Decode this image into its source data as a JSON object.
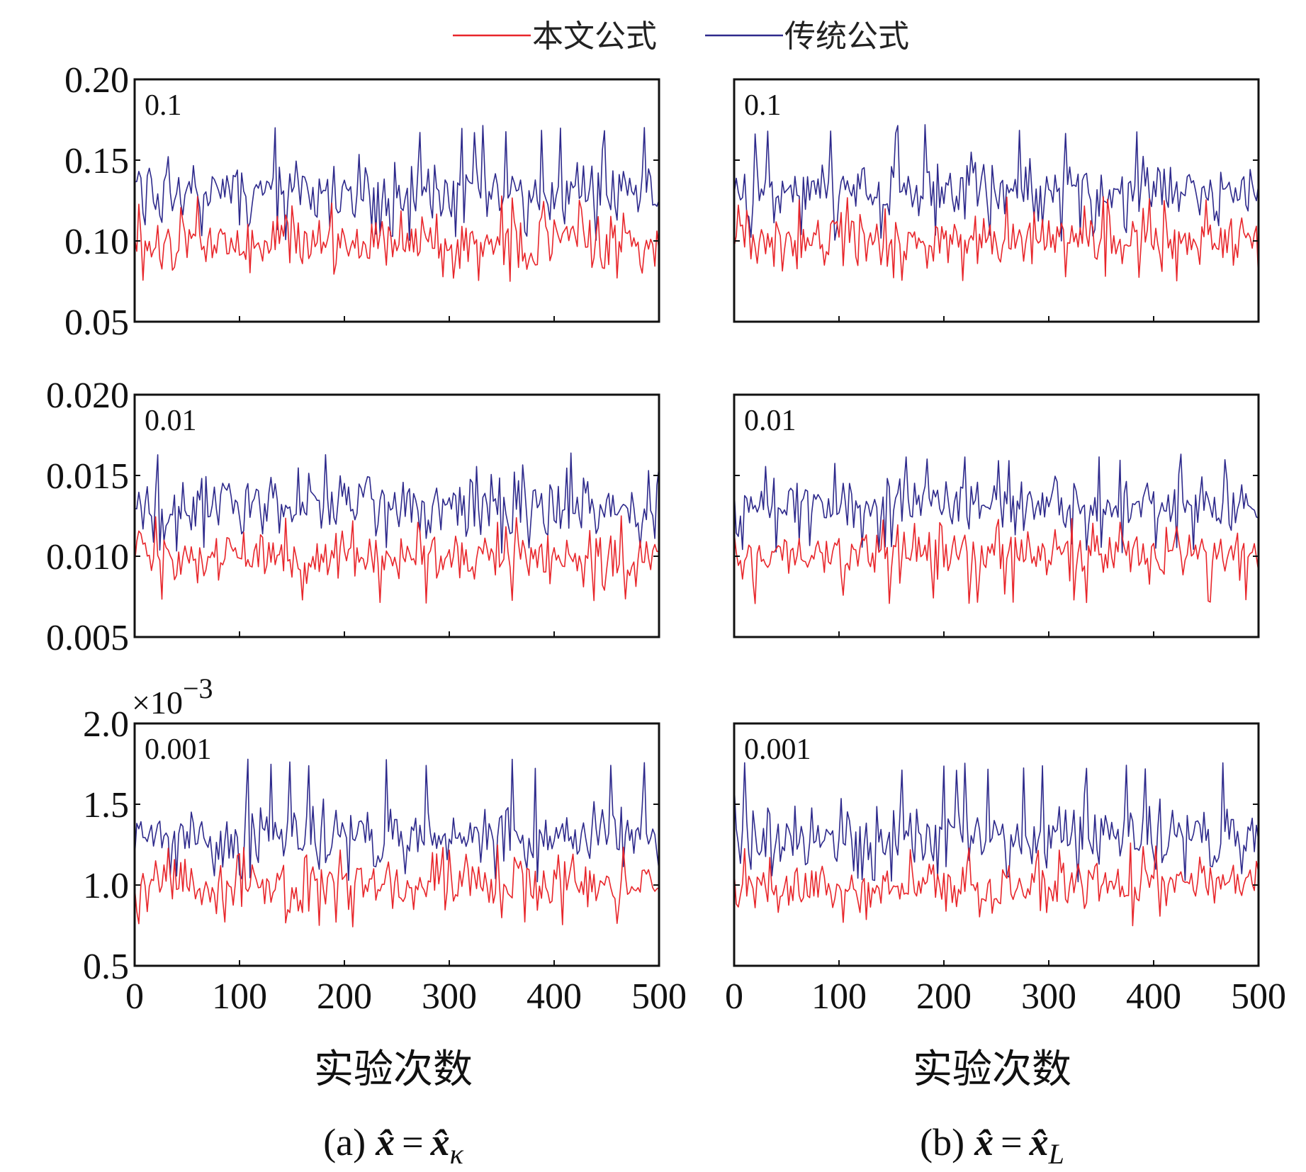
{
  "legend": {
    "items": [
      {
        "label": "本文公式",
        "color": "#e8262b"
      },
      {
        "label": "传统公式",
        "color": "#2e2a8c"
      }
    ]
  },
  "columns": [
    {
      "xlabel": "实验次数",
      "caption_prefix": "(a)",
      "caption_sub": "κ"
    },
    {
      "xlabel": "实验次数",
      "caption_prefix": "(b)",
      "caption_sub": "L"
    }
  ],
  "chart_data": [
    {
      "type": "line",
      "panel": "a-row1",
      "column": 0,
      "row": 0,
      "title": "",
      "annotation": "0.1",
      "show_yticks": true,
      "xlim": [
        0,
        500
      ],
      "ylim": [
        0.05,
        0.2
      ],
      "yticks": [
        "0.05",
        "0.10",
        "0.15",
        "0.20"
      ],
      "xticks": [],
      "exponent_label": "",
      "series": [
        {
          "name": "本文公式",
          "mean": 0.1,
          "spread": 0.0085,
          "min": 0.075,
          "max": 0.128,
          "seed": 11
        },
        {
          "name": "传统公式",
          "mean": 0.13,
          "spread": 0.01,
          "min": 0.1,
          "max": 0.172,
          "seed": 12
        }
      ]
    },
    {
      "type": "line",
      "panel": "a-row2",
      "column": 0,
      "row": 1,
      "title": "",
      "annotation": "0.01",
      "show_yticks": true,
      "xlim": [
        0,
        500
      ],
      "ylim": [
        0.005,
        0.02
      ],
      "yticks": [
        "0.005",
        "0.010",
        "0.015",
        "0.020"
      ],
      "xticks": [],
      "exponent_label": "",
      "series": [
        {
          "name": "本文公式",
          "mean": 0.01,
          "spread": 0.0008,
          "min": 0.0071,
          "max": 0.0125,
          "seed": 21
        },
        {
          "name": "传统公式",
          "mean": 0.0132,
          "spread": 0.001,
          "min": 0.0102,
          "max": 0.0168,
          "seed": 22
        }
      ]
    },
    {
      "type": "line",
      "panel": "a-row3",
      "column": 0,
      "row": 2,
      "title": "",
      "annotation": "0.001",
      "show_yticks": true,
      "xlim": [
        0,
        500
      ],
      "ylim": [
        0.5,
        2.0
      ],
      "yticks": [
        "0.5",
        "1.0",
        "1.5",
        "2.0"
      ],
      "xticks": [
        "0",
        "100",
        "200",
        "300",
        "400",
        "500"
      ],
      "exponent_label": "−3",
      "series": [
        {
          "name": "本文公式",
          "mean": 1.0,
          "spread": 0.085,
          "min": 0.74,
          "max": 1.26,
          "seed": 31
        },
        {
          "name": "传统公式",
          "mean": 1.3,
          "spread": 0.1,
          "min": 1.02,
          "max": 1.78,
          "seed": 32
        }
      ]
    },
    {
      "type": "line",
      "panel": "b-row1",
      "column": 1,
      "row": 0,
      "title": "",
      "annotation": "0.1",
      "show_yticks": false,
      "xlim": [
        0,
        500
      ],
      "ylim": [
        0.05,
        0.2
      ],
      "yticks": [],
      "xticks": [],
      "exponent_label": "",
      "series": [
        {
          "name": "本文公式",
          "mean": 0.1,
          "spread": 0.0085,
          "min": 0.075,
          "max": 0.128,
          "seed": 41
        },
        {
          "name": "传统公式",
          "mean": 0.13,
          "spread": 0.01,
          "min": 0.1,
          "max": 0.172,
          "seed": 42
        }
      ]
    },
    {
      "type": "line",
      "panel": "b-row2",
      "column": 1,
      "row": 1,
      "title": "",
      "annotation": "0.01",
      "show_yticks": false,
      "xlim": [
        0,
        500
      ],
      "ylim": [
        0.005,
        0.02
      ],
      "yticks": [],
      "xticks": [],
      "exponent_label": "",
      "series": [
        {
          "name": "本文公式",
          "mean": 0.01,
          "spread": 0.0008,
          "min": 0.007,
          "max": 0.0125,
          "seed": 51
        },
        {
          "name": "传统公式",
          "mean": 0.0132,
          "spread": 0.001,
          "min": 0.0102,
          "max": 0.0165,
          "seed": 52
        }
      ]
    },
    {
      "type": "line",
      "panel": "b-row3",
      "column": 1,
      "row": 2,
      "title": "",
      "annotation": "0.001",
      "show_yticks": false,
      "xlim": [
        0,
        500
      ],
      "ylim": [
        0.5,
        2.0
      ],
      "yticks": [],
      "xticks": [
        "0",
        "100",
        "200",
        "300",
        "400",
        "500"
      ],
      "exponent_label": "",
      "series": [
        {
          "name": "本文公式",
          "mean": 1.0,
          "spread": 0.085,
          "min": 0.74,
          "max": 1.26,
          "seed": 61
        },
        {
          "name": "传统公式",
          "mean": 1.3,
          "spread": 0.1,
          "min": 1.02,
          "max": 1.76,
          "seed": 62
        }
      ]
    }
  ]
}
